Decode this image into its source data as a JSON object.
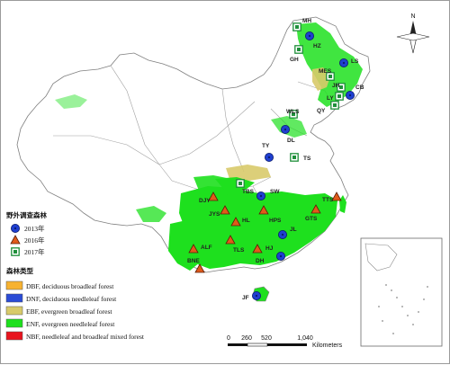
{
  "map": {
    "north_label": "N",
    "colors": {
      "forest_green": "#1ee01e",
      "evergreen_broadleaf": "#d8ca6a",
      "deciduous_broadleaf": "#f7b230",
      "deciduous_needleleaf": "#2a4bd6",
      "needleleaf_broadleaf_mixed": "#e8141e",
      "marker_2013": "#1f3fd0",
      "marker_2016": "#e05a1a",
      "marker_2017": "#1f8f3a",
      "boundary": "#7f7f7f"
    },
    "sites": [
      {
        "label": "MH",
        "type": "2017"
      },
      {
        "label": "HZ",
        "type": "2013"
      },
      {
        "label": "GH",
        "type": "2017"
      },
      {
        "label": "LS",
        "type": "2013"
      },
      {
        "label": "MES",
        "type": "2017"
      },
      {
        "label": "JH",
        "type": "2017"
      },
      {
        "label": "CB",
        "type": "2013"
      },
      {
        "label": "LY",
        "type": "2017"
      },
      {
        "label": "QY",
        "type": "2017"
      },
      {
        "label": "WLS",
        "type": "2017"
      },
      {
        "label": "DL",
        "type": "2013"
      },
      {
        "label": "TY",
        "type": "2013"
      },
      {
        "label": "TS",
        "type": "2017"
      },
      {
        "label": "TBS",
        "type": "2017"
      },
      {
        "label": "SW",
        "type": "2013"
      },
      {
        "label": "TTS",
        "type": "2016"
      },
      {
        "label": "DJY",
        "type": "2016"
      },
      {
        "label": "JYS",
        "type": "2016"
      },
      {
        "label": "HL",
        "type": "2016"
      },
      {
        "label": "HPS",
        "type": "2016"
      },
      {
        "label": "GTS",
        "type": "2016"
      },
      {
        "label": "JL",
        "type": "2013"
      },
      {
        "label": "ALF",
        "type": "2016"
      },
      {
        "label": "TLS",
        "type": "2016"
      },
      {
        "label": "HJ",
        "type": "2016"
      },
      {
        "label": "DH",
        "type": "2013"
      },
      {
        "label": "BNE",
        "type": "2016"
      },
      {
        "label": "JF",
        "type": "2013"
      }
    ]
  },
  "legend": {
    "survey_title": "野外调查森林",
    "survey_items": [
      {
        "label": "2013年",
        "marker": "circle"
      },
      {
        "label": "2016年",
        "marker": "triangle"
      },
      {
        "label": "2017年",
        "marker": "square"
      }
    ],
    "forest_title": "森林类型",
    "forest_items": [
      {
        "label": "DBF, deciduous broadleaf forest",
        "color": "#f7b230"
      },
      {
        "label": "DNF, deciduous needleleaf forest",
        "color": "#2a4bd6"
      },
      {
        "label": "EBF, evergreen broadleaf forest",
        "color": "#d8ca6a"
      },
      {
        "label": "ENF, evergreen needleleaf forest",
        "color": "#1ee01e"
      },
      {
        "label": "NBF, needleleaf and broadleaf mixed forest",
        "color": "#e8141e"
      }
    ]
  },
  "scale_bar": {
    "ticks": [
      "0",
      "260",
      "520",
      "1,040"
    ],
    "unit": "Kilometers"
  }
}
